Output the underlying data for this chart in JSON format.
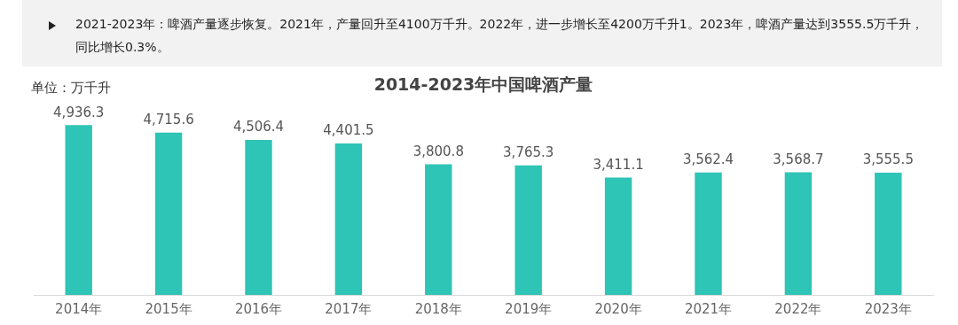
{
  "chart_data": {
    "type": "bar",
    "title": "2014-2023年中国啤酒产量",
    "annotations": [
      "2021-2023年：啤酒产量逐步恢复。2021年，产量回升至4100万千升。2022年，进一步增长至4200万千升1。2023年，啤酒产量达到3555.5万千升，同比增长0.3%。",
      "单位：万千升"
    ],
    "categories": [
      "2014年",
      "2015年",
      "2016年",
      "2017年",
      "2018年",
      "2019年",
      "2020年",
      "2021年",
      "2022年",
      "2023年"
    ],
    "values": [
      4936.3,
      4715.6,
      4506.4,
      4401.5,
      3800.8,
      3765.3,
      3411.1,
      3562.4,
      3568.7,
      3555.5
    ],
    "value_labels": [
      "4,936.3",
      "4,715.6",
      "4,506.4",
      "4,401.5",
      "3,800.8",
      "3,765.3",
      "3,411.1",
      "3,562.4",
      "3,568.7",
      "3,555.5"
    ],
    "color": "#2ec4b6",
    "grid": false,
    "legend": false,
    "tick_labels": "x"
  }
}
